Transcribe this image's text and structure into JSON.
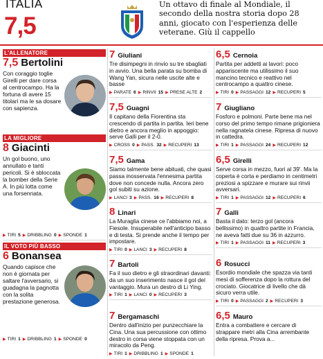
{
  "header": {
    "team": "ITALIA",
    "score": "7,5",
    "summary": "Un ottavo di finale al Mondiale, il secondo della nostra storia dopo 28 anni, giocato con l'esperienza delle veterane. Giù il cappello"
  },
  "sections": {
    "coach": "L'ALLENATORE",
    "best": "LA MIGLIORE",
    "worst": "IL VOTO PIÙ BASSO"
  },
  "col1": [
    {
      "grade": "7,5",
      "name": "Bertolini",
      "text": "Con coraggio toglie Girelli per dare corsa al centrocampo. Ha la fortuna di avere 15 titolari ma le sa dosare con sapienza.",
      "stats": []
    },
    {
      "grade": "8",
      "name": "Giacinti",
      "text": "Un gol buono, uno annullato e tanti pericoli. Si è sbloccata la bomber della Serie A. In più lotta come una forsennata.",
      "stats": [
        {
          "label": "TIRI",
          "value": "5"
        },
        {
          "label": "DRIBBLING",
          "value": "0"
        },
        {
          "label": "SPONDE",
          "value": "1"
        }
      ]
    },
    {
      "grade": "6",
      "name": "Bonansea",
      "text": "Quando capisce che non è giornata per saltare l'avversario, si guadagna la pagnotta con la solita prestazione generosa.",
      "stats": [
        {
          "label": "TIRI",
          "value": "1"
        },
        {
          "label": "DRIBBLING",
          "value": "1"
        },
        {
          "label": "SPONDE",
          "value": "0"
        }
      ]
    }
  ],
  "col2": [
    {
      "grade": "7",
      "name": "Giuliani",
      "text": "Tre disimpegni in rinvio su tre sbagliati in avvio. Una bella parata su bomba di Wang Yan, sicura nelle uscite alte e basse",
      "stats": [
        {
          "label": "PARATE",
          "value": "6"
        },
        {
          "label": "RINVII",
          "value": "15"
        },
        {
          "label": "PRESE ALTE",
          "value": "2"
        }
      ]
    },
    {
      "grade": "7,5",
      "name": "Guagni",
      "text": "Il capitano della Fiorentina sta crescendo di partita in partita. Ieri bene dietro e ancora meglio in appoggio: serve Galli per il 2-0.",
      "stats": [
        {
          "label": "CROSS",
          "value": "0"
        },
        {
          "label": "PASS.",
          "value": "32"
        },
        {
          "label": "RECUPERI",
          "value": "13"
        }
      ]
    },
    {
      "grade": "7,5",
      "name": "Gama",
      "text": "Siamo talmente bene abituati, che quasi passa inosservata l'ennesima partita dove non concede nulla. Ancora zero gol subiti su azione.",
      "stats": [
        {
          "label": "LANCI",
          "value": "3"
        },
        {
          "label": "PASS.",
          "value": "16"
        },
        {
          "label": "RECUPERI",
          "value": "8"
        }
      ]
    },
    {
      "grade": "8",
      "name": "Linari",
      "text": "La Muraglia cinese ce l'abbiamo noi, a Fiesole. Insuperabile nell'anticipo basso e di testa. Si prende anche il tempo per impostare.",
      "stats": [
        {
          "label": "TIRI",
          "value": "0"
        },
        {
          "label": "LANCI",
          "value": "3"
        },
        {
          "label": "RECUPERI",
          "value": "8"
        }
      ]
    },
    {
      "grade": "7",
      "name": "Bartoli",
      "text": "Fa il suo dietro e gli straordinari davanti: da un suo inserimento nasce il gol del vantaggio. Mura un destro di Li Ying.",
      "stats": [
        {
          "label": "TIRI",
          "value": "1"
        },
        {
          "label": "LANCI",
          "value": "0"
        },
        {
          "label": "RECUPERI",
          "value": "3"
        }
      ]
    },
    {
      "grade": "7",
      "name": "Bergamaschi",
      "text": "Dentro dall'inizio per punzecchiare la Cina. Una sua percussione con ottimo destro in corsa viene stoppata con un miracolo da Peng.",
      "stats": [
        {
          "label": "TIRI",
          "value": "1"
        },
        {
          "label": "DRIBBLING",
          "value": "1"
        },
        {
          "label": "SPONDE",
          "value": "1"
        }
      ]
    }
  ],
  "col3": [
    {
      "grade": "6,5",
      "name": "Cernoia",
      "text": "Partita per addetti ai lavori: poco appariscente ma utilissimo il suo mancino tecnico e reattivo nel centrocampo a quattro cinese.",
      "stats": [
        {
          "label": "TIRI",
          "value": "0"
        },
        {
          "label": "PASSAGGI",
          "value": "12"
        },
        {
          "label": "RECUPERI",
          "value": "5"
        }
      ]
    },
    {
      "grade": "7",
      "name": "Giugliano",
      "text": "Fosforo e polmoni. Parte bene ma nel corso del primo tempo rimane prigioniera nella ragnatela cinese. Ripresa di nuovo in cattedra.",
      "stats": [
        {
          "label": "TIRI",
          "value": "1"
        },
        {
          "label": "PASSAGGI",
          "value": "24"
        },
        {
          "label": "RECUPERI",
          "value": "12"
        }
      ]
    },
    {
      "grade": "6,5",
      "name": "Girelli",
      "text": "Serve corsa in mezzo, fuori al 39'. Ma la coperta è corta e perdiamo in centimetri preziosi a spizzare e murare sui rinvii avversari.",
      "stats": [
        {
          "label": "TIRI",
          "value": "1"
        },
        {
          "label": "PASSAGGI",
          "value": "12"
        },
        {
          "label": "RECUPERI",
          "value": "6"
        }
      ]
    },
    {
      "grade": "7",
      "name": "Galli",
      "text": "Basta il dato: terzo gol (ancora bellissimo) in quattro partite in Francia, ne aveva fatti due su 36 in azzurro.",
      "stats": [
        {
          "label": "TIRI",
          "value": "1"
        },
        {
          "label": "PASSAGGI",
          "value": "11"
        },
        {
          "label": "RECUPERI",
          "value": "3"
        }
      ]
    },
    {
      "grade": "6",
      "name": "Rosucci",
      "text": "Esordio mondiale che spazza via tanti mesi di sofferenza dopo la rottura del crociato. Giocatrice di livello che dà sicuro verra utile.",
      "stats": [
        {
          "label": "TIRI",
          "value": "0"
        },
        {
          "label": "PASSAGGI",
          "value": "2"
        },
        {
          "label": "RECUPERI",
          "value": "3"
        }
      ]
    },
    {
      "grade": "6,5",
      "name": "Mauro",
      "text": "Entra a combattere e cercare di strappare metri alla Cina arrembante della ripresa. Prova a...",
      "stats": []
    }
  ],
  "colors": {
    "accent": "#d2232a",
    "text": "#111111",
    "rule": "#d8d8d8"
  }
}
